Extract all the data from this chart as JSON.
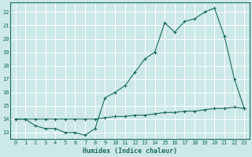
{
  "xlabel": "Humidex (Indice chaleur)",
  "bg_color": "#cce8e8",
  "grid_color": "#ffffff",
  "line_color": "#1a6b5a",
  "xlim": [
    -0.5,
    23.5
  ],
  "ylim": [
    12.5,
    22.7
  ],
  "xticks": [
    0,
    1,
    2,
    3,
    4,
    5,
    6,
    7,
    8,
    9,
    10,
    11,
    12,
    13,
    14,
    15,
    16,
    17,
    18,
    19,
    20,
    21,
    22,
    23
  ],
  "yticks": [
    13,
    14,
    15,
    16,
    17,
    18,
    19,
    20,
    21,
    22
  ],
  "line1_x": [
    0,
    1,
    2,
    3,
    4,
    5,
    6,
    7,
    8,
    9,
    10,
    11,
    12,
    13,
    14,
    15,
    16,
    17,
    18,
    19,
    20,
    21,
    22,
    23
  ],
  "line1_y": [
    14,
    14,
    13.5,
    13.3,
    13.3,
    13.0,
    13.0,
    12.8,
    13.3,
    15.6,
    16.0,
    16.5,
    17.5,
    18.5,
    19.0,
    21.2,
    20.5,
    21.3,
    21.5,
    22.0,
    22.3,
    20.2,
    17.0,
    14.8
  ],
  "line2_x": [
    0,
    1,
    2,
    3,
    4,
    5,
    6,
    7,
    8,
    9,
    10,
    11,
    12,
    13,
    14,
    15,
    16,
    17,
    18,
    19,
    20,
    21,
    22,
    23
  ],
  "line2_y": [
    14,
    14,
    14,
    14,
    14,
    14,
    14,
    14,
    14,
    14.1,
    14.2,
    14.2,
    14.3,
    14.3,
    14.4,
    14.5,
    14.5,
    14.6,
    14.6,
    14.7,
    14.8,
    14.8,
    14.9,
    14.8
  ]
}
